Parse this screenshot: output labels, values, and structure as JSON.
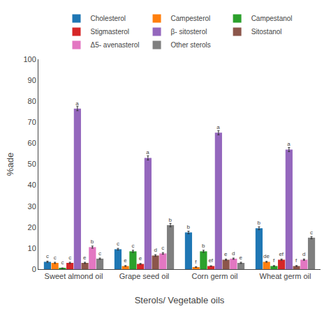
{
  "chart_data": {
    "type": "bar",
    "xlabel": "Sterols/ Vegetable oils",
    "ylabel": "%ade",
    "categories": [
      "Sweet almond oil",
      "Grape seed oil",
      "Corn germ oil",
      "Wheat germ oil"
    ],
    "series": [
      {
        "name": "Cholesterol",
        "values": [
          3.5,
          9.5,
          17.5,
          19.5
        ],
        "errors": [
          0.3,
          0.4,
          0.6,
          0.7
        ],
        "labels": [
          "c",
          "c",
          "b",
          "b"
        ]
      },
      {
        "name": "Campesterol",
        "values": [
          3.0,
          1.5,
          1.0,
          3.5
        ],
        "errors": [
          0.3,
          0.2,
          0.1,
          0.2
        ],
        "labels": [
          "c",
          "e",
          "f",
          "de"
        ]
      },
      {
        "name": "Campestanol",
        "values": [
          0.5,
          8.5,
          8.5,
          1.5
        ],
        "errors": [
          0.1,
          0.5,
          0.5,
          0.2
        ],
        "labels": [
          "c",
          "c",
          "b",
          "f"
        ]
      },
      {
        "name": "Stigmasterol",
        "values": [
          3.0,
          2.5,
          1.5,
          4.5
        ],
        "errors": [
          0.3,
          0.2,
          0.1,
          0.3
        ],
        "labels": [
          "c",
          "e",
          "ef",
          "ef"
        ]
      },
      {
        "name": "β- sitosterol",
        "values": [
          76.5,
          53.0,
          65.0,
          57.0
        ],
        "errors": [
          1.0,
          1.0,
          1.0,
          1.0
        ],
        "labels": [
          "a",
          "a",
          "a",
          "a"
        ]
      },
      {
        "name": "Sitostanol",
        "values": [
          3.0,
          6.5,
          4.5,
          1.5
        ],
        "errors": [
          0.3,
          0.4,
          0.3,
          0.2
        ],
        "labels": [
          "e",
          "d",
          "e",
          "f"
        ]
      },
      {
        "name": "Δ5- avenasterol",
        "values": [
          10.5,
          7.5,
          5.0,
          4.5
        ],
        "errors": [
          0.5,
          0.4,
          0.3,
          0.3
        ],
        "labels": [
          "b",
          "c",
          "d",
          "d"
        ]
      },
      {
        "name": "Other sterols",
        "values": [
          5.0,
          21.0,
          3.0,
          15.0
        ],
        "errors": [
          0.3,
          0.8,
          0.3,
          0.5
        ],
        "labels": [
          "c",
          "b",
          "e",
          "c"
        ]
      }
    ],
    "ylim": [
      0,
      100
    ],
    "yticks": [
      0,
      10,
      20,
      30,
      40,
      50,
      60,
      70,
      80,
      90,
      100
    ],
    "grid": false,
    "legend": "top"
  }
}
